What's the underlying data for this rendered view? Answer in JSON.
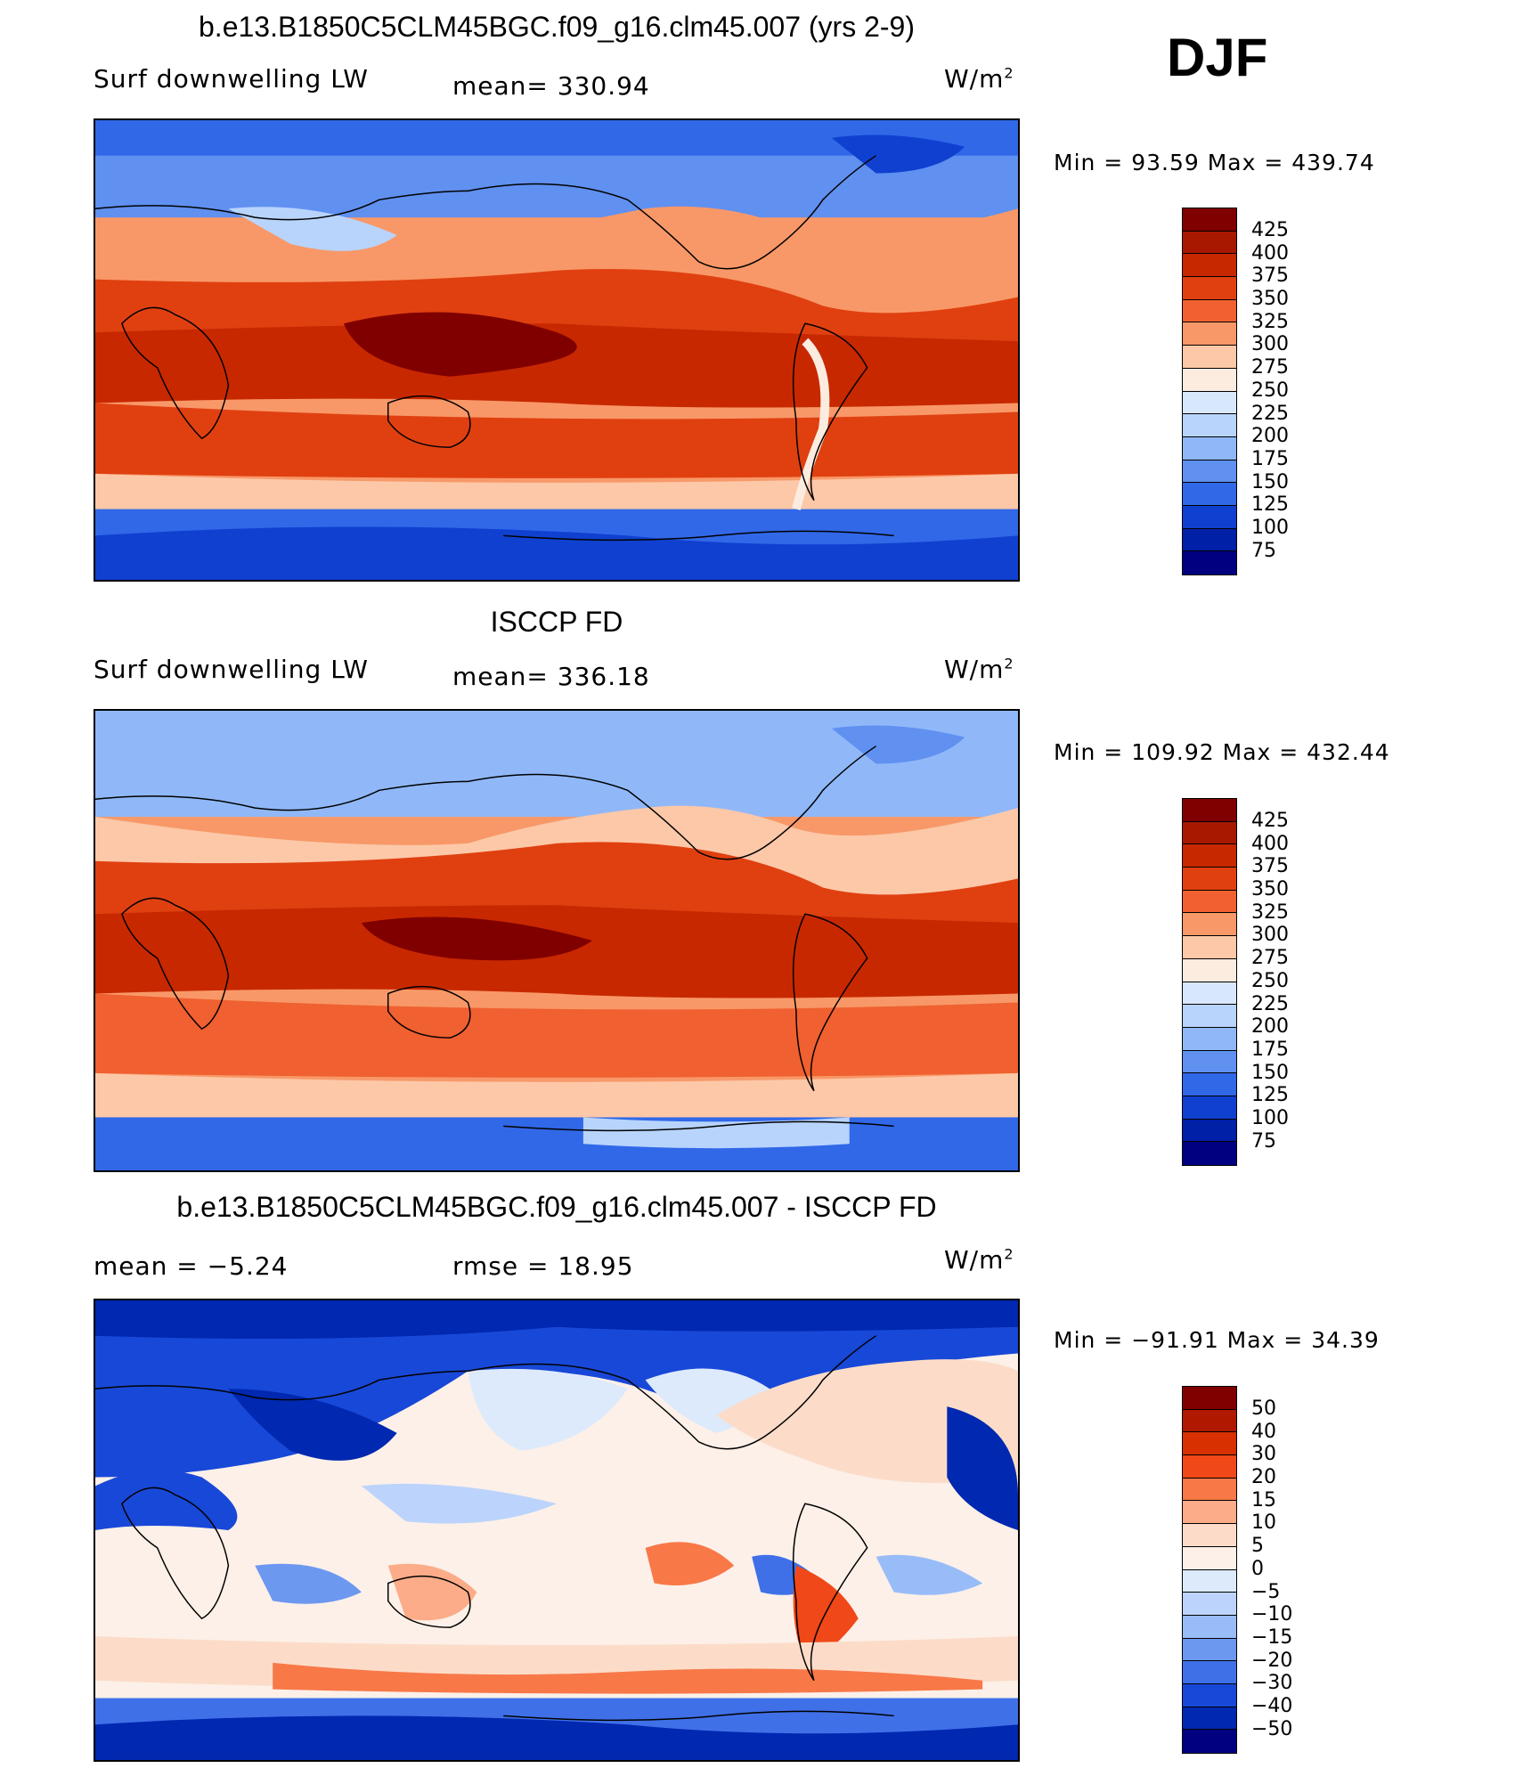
{
  "season": "DJF",
  "panels": [
    {
      "id": "model",
      "title": "b.e13.B1850C5CLM45BGC.f09_g16.clm45.007 (yrs 2-9)",
      "left_label": "Surf  downwelling  LW",
      "center_label": "mean=  330.94",
      "units": "W/m",
      "units_sup": "2",
      "minmax": "Min  =     93.59  Max  =  439.74",
      "colorbar_labels": [
        "425",
        "400",
        "375",
        "350",
        "325",
        "300",
        "275",
        "250",
        "225",
        "200",
        "175",
        "150",
        "125",
        "100",
        "75"
      ]
    },
    {
      "id": "obs",
      "title": "ISCCP FD",
      "left_label": "Surf  downwelling  LW",
      "center_label": "mean=  336.18",
      "units": "W/m",
      "units_sup": "2",
      "minmax": "Min  =  109.92  Max  =  432.44",
      "colorbar_labels": [
        "425",
        "400",
        "375",
        "350",
        "325",
        "300",
        "275",
        "250",
        "225",
        "200",
        "175",
        "150",
        "125",
        "100",
        "75"
      ]
    },
    {
      "id": "diff",
      "title": "b.e13.B1850C5CLM45BGC.f09_g16.clm45.007 - ISCCP FD",
      "left_label": "mean  =     −5.24",
      "center_label": "rmse  =     18.95",
      "units": "W/m",
      "units_sup": "2",
      "minmax": "Min  =  −91.91  Max  =     34.39",
      "colorbar_labels": [
        "50",
        "40",
        "30",
        "20",
        "15",
        "10",
        "5",
        "0",
        "−5",
        "−10",
        "−15",
        "−20",
        "−30",
        "−40",
        "−50"
      ]
    }
  ],
  "colors": {
    "scale": [
      "#800000",
      "#a81800",
      "#c82800",
      "#e04010",
      "#f06030",
      "#f89868",
      "#fcc8a8",
      "#fcece0",
      "#d8e8fc",
      "#b8d4fc",
      "#90b8f8",
      "#6090f0",
      "#3068e8",
      "#1040d0",
      "#0020a8",
      "#000080"
    ],
    "diff_scale": [
      "#800000",
      "#b01800",
      "#d83000",
      "#f04818",
      "#f87848",
      "#fcac88",
      "#fcdcc8",
      "#fcf0e8",
      "#dceafc",
      "#bcd4fc",
      "#98bcf8",
      "#6c98f0",
      "#4070e8",
      "#1848d8",
      "#0028b0",
      "#000080"
    ]
  }
}
